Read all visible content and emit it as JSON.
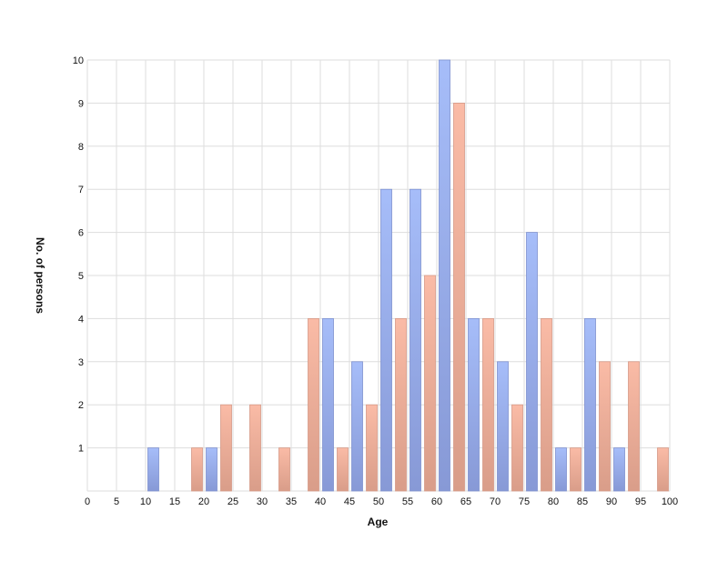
{
  "chart_data": {
    "type": "bar",
    "xlabel": "Age",
    "ylabel": "No. of persons",
    "xlim": [
      0,
      100
    ],
    "ylim": [
      0,
      10
    ],
    "x_ticks": [
      0,
      5,
      10,
      15,
      20,
      25,
      30,
      35,
      40,
      45,
      50,
      55,
      60,
      65,
      70,
      75,
      80,
      85,
      90,
      95,
      100
    ],
    "y_ticks": [
      1,
      2,
      3,
      4,
      5,
      6,
      7,
      8,
      9,
      10
    ],
    "grid": true,
    "colors": {
      "series_a": "#9db4f2",
      "series_a_dark": "#7f91cf",
      "series_b": "#f6b39f",
      "series_b_dark": "#d69a87",
      "grid": "#dddddd"
    },
    "series": [
      {
        "color_key": "series_a",
        "points": [
          {
            "x": 10,
            "y": 1
          },
          {
            "x": 20,
            "y": 1
          },
          {
            "x": 40,
            "y": 4
          },
          {
            "x": 45,
            "y": 3
          },
          {
            "x": 50,
            "y": 7
          },
          {
            "x": 55,
            "y": 7
          },
          {
            "x": 60,
            "y": 10
          },
          {
            "x": 65,
            "y": 4
          },
          {
            "x": 70,
            "y": 3
          },
          {
            "x": 75,
            "y": 6
          },
          {
            "x": 80,
            "y": 1
          },
          {
            "x": 85,
            "y": 4
          },
          {
            "x": 90,
            "y": 1
          }
        ]
      },
      {
        "color_key": "series_b",
        "points": [
          {
            "x": 15,
            "y": 1
          },
          {
            "x": 20,
            "y": 2
          },
          {
            "x": 25,
            "y": 2
          },
          {
            "x": 30,
            "y": 1
          },
          {
            "x": 35,
            "y": 4
          },
          {
            "x": 40,
            "y": 1
          },
          {
            "x": 45,
            "y": 2
          },
          {
            "x": 50,
            "y": 4
          },
          {
            "x": 55,
            "y": 5
          },
          {
            "x": 60,
            "y": 9
          },
          {
            "x": 65,
            "y": 4
          },
          {
            "x": 70,
            "y": 2
          },
          {
            "x": 75,
            "y": 4
          },
          {
            "x": 80,
            "y": 1
          },
          {
            "x": 85,
            "y": 3
          },
          {
            "x": 90,
            "y": 3
          },
          {
            "x": 95,
            "y": 1
          }
        ]
      }
    ]
  }
}
